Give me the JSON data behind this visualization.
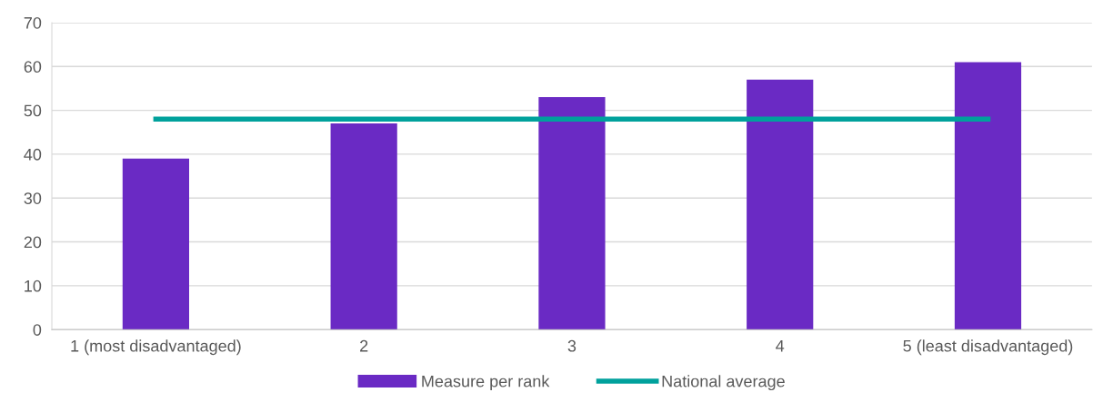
{
  "chart_data": {
    "type": "bar",
    "categories": [
      "1 (most disadvantaged)",
      "2",
      "3",
      "4",
      "5 (least disadvantaged)"
    ],
    "series": [
      {
        "name": "Measure per rank",
        "color": "#6a2ac4",
        "values": [
          39,
          47,
          53,
          57,
          61
        ]
      },
      {
        "name": "National average",
        "color": "#00a19c",
        "values": [
          48,
          48,
          48,
          48,
          48
        ],
        "type": "line"
      }
    ],
    "ylim": [
      0,
      70
    ],
    "yticks": [
      0,
      10,
      20,
      30,
      40,
      50,
      60,
      70
    ],
    "grid": "y",
    "legend": "bottom",
    "marker": "none",
    "line_style": "solid"
  }
}
